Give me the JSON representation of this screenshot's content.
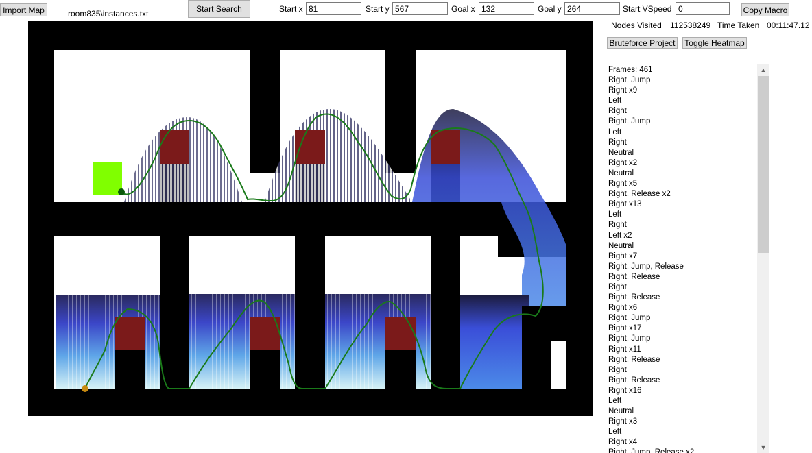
{
  "toolbar": {
    "import_label": "Import Map",
    "file_path": "room835\\instances.txt",
    "search_label": "Start Search",
    "start_x_label": "Start x",
    "start_x_value": "81",
    "start_y_label": "Start y",
    "start_y_value": "567",
    "goal_x_label": "Goal x",
    "goal_x_value": "132",
    "goal_y_label": "Goal y",
    "goal_y_value": "264",
    "start_vspeed_label": "Start VSpeed",
    "start_vspeed_value": "0",
    "copy_macro_label": "Copy Macro"
  },
  "stats": {
    "nodes_label": "Nodes Visited",
    "nodes_value": "112538249",
    "time_label": "Time Taken",
    "time_value": "00:11:47.12"
  },
  "actions": {
    "bruteforce_label": "Bruteforce Project",
    "heatmap_label": "Toggle Heatmap"
  },
  "colors": {
    "wall": "#000000",
    "spike_block": "#7b1a1a",
    "goal": "#80ff00",
    "path": "#1a7a1a",
    "start_dot": "#c88a10",
    "goal_dot": "#0a5a0a"
  },
  "macro": [
    "Frames: 461",
    "Right, Jump",
    "Right x9",
    "Left",
    "Right",
    "Right, Jump",
    "Left",
    "Right",
    "Neutral",
    "Right x2",
    "Neutral",
    "Right x5",
    "Right, Release x2",
    "Right x13",
    "Left",
    "Right",
    "Left x2",
    "Neutral",
    "Right x7",
    "Right, Jump, Release",
    "Right, Release",
    "Right",
    "Right, Release",
    "Right x6",
    "Right, Jump",
    "Right x17",
    "Right, Jump",
    "Right x11",
    "Right, Release",
    "Right",
    "Right, Release",
    "Right x16",
    "Left",
    "Neutral",
    "Right x3",
    "Left",
    "Right x4",
    "Right, Jump, Release x2"
  ]
}
